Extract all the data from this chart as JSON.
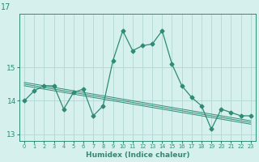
{
  "title": "17",
  "xlabel": "Humidex (Indice chaleur)",
  "x": [
    0,
    1,
    2,
    3,
    4,
    5,
    6,
    7,
    8,
    9,
    10,
    11,
    12,
    13,
    14,
    15,
    16,
    17,
    18,
    19,
    20,
    21,
    22,
    23
  ],
  "y_main": [
    14.0,
    14.3,
    14.45,
    14.45,
    13.75,
    14.25,
    14.35,
    13.55,
    13.85,
    15.2,
    16.1,
    15.5,
    15.65,
    15.7,
    16.1,
    15.1,
    14.45,
    14.1,
    13.85,
    13.15,
    13.75,
    13.65,
    13.55,
    13.55
  ],
  "y_reg1": [
    14.45,
    14.4,
    14.35,
    14.3,
    14.25,
    14.2,
    14.15,
    14.1,
    14.05,
    14.0,
    13.95,
    13.9,
    13.85,
    13.8,
    13.75,
    13.7,
    13.65,
    13.6,
    13.55,
    13.5,
    13.45,
    13.4,
    13.35,
    13.3
  ],
  "y_reg2": [
    14.5,
    14.45,
    14.4,
    14.35,
    14.3,
    14.25,
    14.2,
    14.15,
    14.1,
    14.05,
    14.0,
    13.95,
    13.9,
    13.85,
    13.8,
    13.75,
    13.7,
    13.65,
    13.6,
    13.55,
    13.5,
    13.45,
    13.4,
    13.35
  ],
  "y_reg3": [
    14.55,
    14.5,
    14.45,
    14.4,
    14.35,
    14.3,
    14.25,
    14.2,
    14.15,
    14.1,
    14.05,
    14.0,
    13.95,
    13.9,
    13.85,
    13.8,
    13.75,
    13.7,
    13.65,
    13.6,
    13.55,
    13.5,
    13.45,
    13.4
  ],
  "line_color": "#2E8B74",
  "bg_color": "#D6F0EE",
  "grid_color": "#B8DAD6",
  "text_color": "#2E8B74",
  "ylim": [
    12.8,
    16.6
  ],
  "yticks": [
    13,
    14,
    15
  ],
  "markersize": 2.5
}
